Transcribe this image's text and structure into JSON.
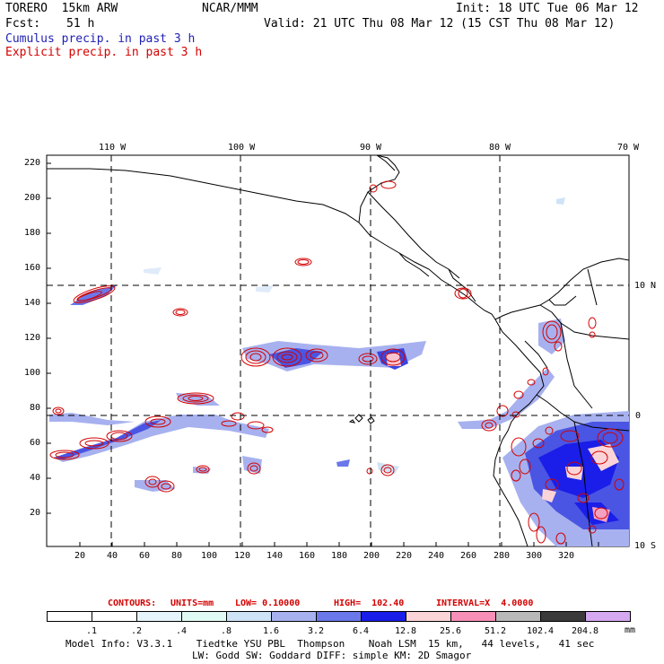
{
  "header": {
    "model": "TORERO  15km ARW",
    "org": "NCAR/MMM",
    "init": "Init: 18 UTC Tue 06 Mar 12",
    "fcst_label": "Fcst:",
    "fcst_value": "51 h",
    "valid": "Valid: 21 UTC Thu 08 Mar 12 (15 CST Thu 08 Mar 12)",
    "line_cumulus": "Cumulus precip. in past 3 h",
    "line_explicit": "Explicit precip. in past 3 h"
  },
  "map": {
    "lon_labels": [
      "110 W",
      "100 W",
      "90 W",
      "80 W",
      "70 W"
    ],
    "lat_labels": [
      "10 N",
      "0",
      "10 S"
    ],
    "y_ticks": [
      "220",
      "200",
      "180",
      "160",
      "140",
      "120",
      "100",
      "80",
      "60",
      "40",
      "20"
    ],
    "x_ticks": [
      "20",
      "40",
      "60",
      "80",
      "100",
      "120",
      "140",
      "160",
      "180",
      "200",
      "220",
      "240",
      "260",
      "280",
      "300",
      "320"
    ]
  },
  "contour_info": {
    "label": "CONTOURS:",
    "units": "UNITS=mm",
    "low": "LOW= 0.10000",
    "high": "HIGH=  102.40",
    "interval": "INTERVAL=X  4.0000"
  },
  "legend": {
    "labels": [
      ".1",
      ".2",
      ".4",
      ".8",
      "1.6",
      "3.2",
      "6.4",
      "12.8",
      "25.6",
      "51.2",
      "102.4",
      "204.8"
    ],
    "unit": "mm",
    "colors": [
      "#ffffff",
      "#ffffff",
      "#e6f4fb",
      "#e0fbf4",
      "#cfe3f7",
      "#a7b1ef",
      "#6a78ea",
      "#1a1ee8",
      "#fbd4d8",
      "#f78fb6",
      "#b8b8b8",
      "#3a3a3a",
      "#d6a8f0"
    ]
  },
  "footer": {
    "line1": "Model Info: V3.3.1    Tiedtke YSU PBL  Thompson    Noah LSM  15 km,   44 levels,   41 sec",
    "line2": "LW: Godd SW: Goddard DIFF: simple KM: 2D Smagor"
  }
}
